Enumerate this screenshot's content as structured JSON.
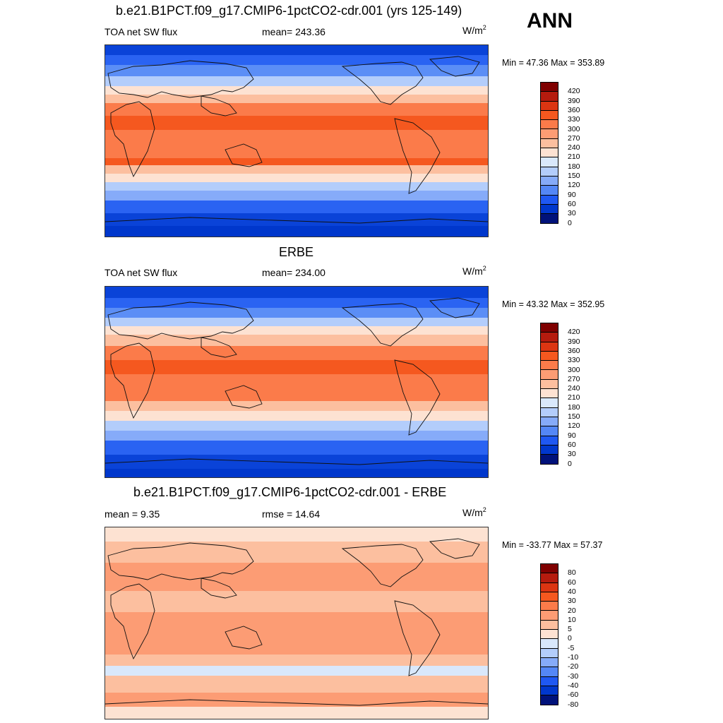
{
  "season": "ANN",
  "units": "W/m",
  "units_sup": "2",
  "panels": [
    {
      "title": "b.e21.B1PCT.f09_g17.CMIP6-1pctCO2-cdr.001 (yrs 125-149)",
      "left_label": "TOA net SW flux",
      "mid_label": "mean= 243.36",
      "minmax": "Min =  47.36 Max = 353.89",
      "levels": [
        "420",
        "390",
        "360",
        "330",
        "300",
        "270",
        "240",
        "210",
        "180",
        "150",
        "120",
        "90",
        "60",
        "30",
        "0"
      ],
      "colors": [
        "#7f0000",
        "#b51b0e",
        "#dc3512",
        "#f5581f",
        "#fb7b4a",
        "#fc9c74",
        "#fcbf9f",
        "#fde2d2",
        "#d9e8fb",
        "#b3cdfb",
        "#86abf9",
        "#5487f6",
        "#1f58f2",
        "#0037cc",
        "#00127a"
      ],
      "bands": [
        {
          "c": "#0a43d8",
          "y0": 0,
          "y1": 14
        },
        {
          "c": "#2a63f2",
          "y0": 14,
          "y1": 28
        },
        {
          "c": "#5b8ef6",
          "y0": 28,
          "y1": 44
        },
        {
          "c": "#b3cdfb",
          "y0": 44,
          "y1": 58
        },
        {
          "c": "#fde2d2",
          "y0": 58,
          "y1": 70
        },
        {
          "c": "#fcbf9f",
          "y0": 70,
          "y1": 82
        },
        {
          "c": "#fb7b4a",
          "y0": 82,
          "y1": 100
        },
        {
          "c": "#f5581f",
          "y0": 100,
          "y1": 120
        },
        {
          "c": "#fb7b4a",
          "y0": 120,
          "y1": 160
        },
        {
          "c": "#f5581f",
          "y0": 160,
          "y1": 170
        },
        {
          "c": "#fcbf9f",
          "y0": 170,
          "y1": 182
        },
        {
          "c": "#fde2d2",
          "y0": 182,
          "y1": 194
        },
        {
          "c": "#b3cdfb",
          "y0": 194,
          "y1": 206
        },
        {
          "c": "#86abf9",
          "y0": 206,
          "y1": 220
        },
        {
          "c": "#2a63f2",
          "y0": 220,
          "y1": 238
        },
        {
          "c": "#0a43d8",
          "y0": 238,
          "y1": 256
        },
        {
          "c": "#0037cc",
          "y0": 256,
          "y1": 272
        }
      ]
    },
    {
      "title": "ERBE",
      "left_label": "TOA net SW flux",
      "mid_label": "mean= 234.00",
      "minmax": "Min =  43.32 Max = 352.95",
      "levels": [
        "420",
        "390",
        "360",
        "330",
        "300",
        "270",
        "240",
        "210",
        "180",
        "150",
        "120",
        "90",
        "60",
        "30",
        "0"
      ],
      "colors": [
        "#7f0000",
        "#b51b0e",
        "#dc3512",
        "#f5581f",
        "#fb7b4a",
        "#fc9c74",
        "#fcbf9f",
        "#fde2d2",
        "#d9e8fb",
        "#b3cdfb",
        "#86abf9",
        "#5487f6",
        "#1f58f2",
        "#0037cc",
        "#00127a"
      ],
      "bands": [
        {
          "c": "#0a43d8",
          "y0": 0,
          "y1": 16
        },
        {
          "c": "#2a63f2",
          "y0": 16,
          "y1": 30
        },
        {
          "c": "#5b8ef6",
          "y0": 30,
          "y1": 44
        },
        {
          "c": "#b3cdfb",
          "y0": 44,
          "y1": 56
        },
        {
          "c": "#fde2d2",
          "y0": 56,
          "y1": 68
        },
        {
          "c": "#fcbf9f",
          "y0": 68,
          "y1": 84
        },
        {
          "c": "#fb7b4a",
          "y0": 84,
          "y1": 104
        },
        {
          "c": "#f5581f",
          "y0": 104,
          "y1": 124
        },
        {
          "c": "#fb7b4a",
          "y0": 124,
          "y1": 162
        },
        {
          "c": "#fcbf9f",
          "y0": 162,
          "y1": 176
        },
        {
          "c": "#fde2d2",
          "y0": 176,
          "y1": 190
        },
        {
          "c": "#b3cdfb",
          "y0": 190,
          "y1": 204
        },
        {
          "c": "#86abf9",
          "y0": 204,
          "y1": 218
        },
        {
          "c": "#2a63f2",
          "y0": 218,
          "y1": 238
        },
        {
          "c": "#0a43d8",
          "y0": 238,
          "y1": 258
        },
        {
          "c": "#0037cc",
          "y0": 258,
          "y1": 270
        }
      ]
    },
    {
      "title": "b.e21.B1PCT.f09_g17.CMIP6-1pctCO2-cdr.001 - ERBE",
      "left_label": "mean =   9.35",
      "mid_label": "rmse =  14.64",
      "minmax": "Min = -33.77 Max =  57.37",
      "levels": [
        "80",
        "60",
        "40",
        "30",
        "20",
        "10",
        "5",
        "0",
        "-5",
        "-10",
        "-20",
        "-30",
        "-40",
        "-60",
        "-80"
      ],
      "colors": [
        "#7f0000",
        "#b51b0e",
        "#dc3512",
        "#f5581f",
        "#fb7b4a",
        "#fc9c74",
        "#fcbf9f",
        "#fde2d2",
        "#d9e8fb",
        "#b3cdfb",
        "#86abf9",
        "#5487f6",
        "#1f58f2",
        "#0037cc",
        "#00127a"
      ],
      "bands": [
        {
          "c": "#fde2d2",
          "y0": 0,
          "y1": 20
        },
        {
          "c": "#fcbf9f",
          "y0": 20,
          "y1": 50
        },
        {
          "c": "#fc9c74",
          "y0": 50,
          "y1": 90
        },
        {
          "c": "#fcbf9f",
          "y0": 90,
          "y1": 120
        },
        {
          "c": "#fc9c74",
          "y0": 120,
          "y1": 180
        },
        {
          "c": "#fcbf9f",
          "y0": 180,
          "y1": 196
        },
        {
          "c": "#d9e8fb",
          "y0": 196,
          "y1": 210
        },
        {
          "c": "#fcbf9f",
          "y0": 210,
          "y1": 234
        },
        {
          "c": "#fc9c74",
          "y0": 234,
          "y1": 254
        },
        {
          "c": "#fde2d2",
          "y0": 254,
          "y1": 272
        }
      ]
    }
  ]
}
